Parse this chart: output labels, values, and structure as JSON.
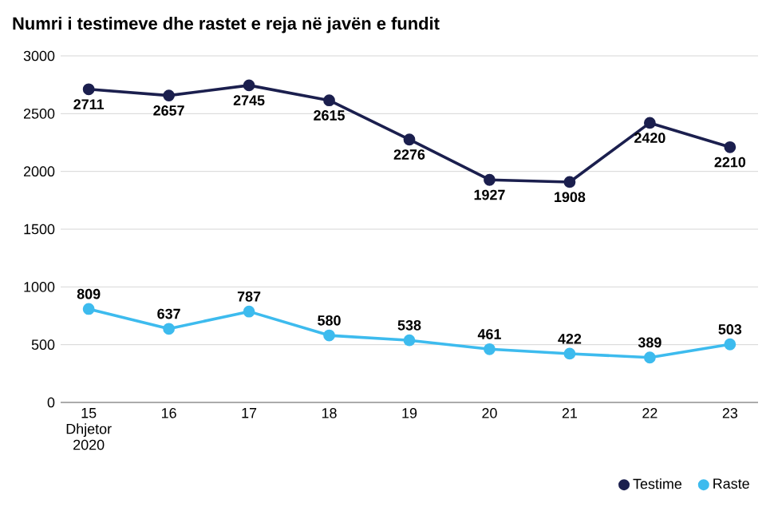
{
  "chart_data": {
    "type": "line",
    "title": "Numri i testimeve dhe rastet e reja në javën e fundit",
    "categories": [
      "15 Dhjetor 2020",
      "16",
      "17",
      "18",
      "19",
      "20",
      "21",
      "22",
      "23"
    ],
    "series": [
      {
        "name": "Testime",
        "color": "#1b1f4e",
        "values": [
          2711,
          2657,
          2745,
          2615,
          2276,
          1927,
          1908,
          2420,
          2210
        ]
      },
      {
        "name": "Raste",
        "color": "#3dbbee",
        "values": [
          809,
          637,
          787,
          580,
          538,
          461,
          422,
          389,
          503
        ]
      }
    ],
    "ylim": [
      0,
      3000
    ],
    "yticks": [
      0,
      500,
      1000,
      1500,
      2000,
      2500,
      3000
    ],
    "grid": "y",
    "legend": "bottom right",
    "marker": "circle",
    "line_style": "solid",
    "data_labels": true
  }
}
